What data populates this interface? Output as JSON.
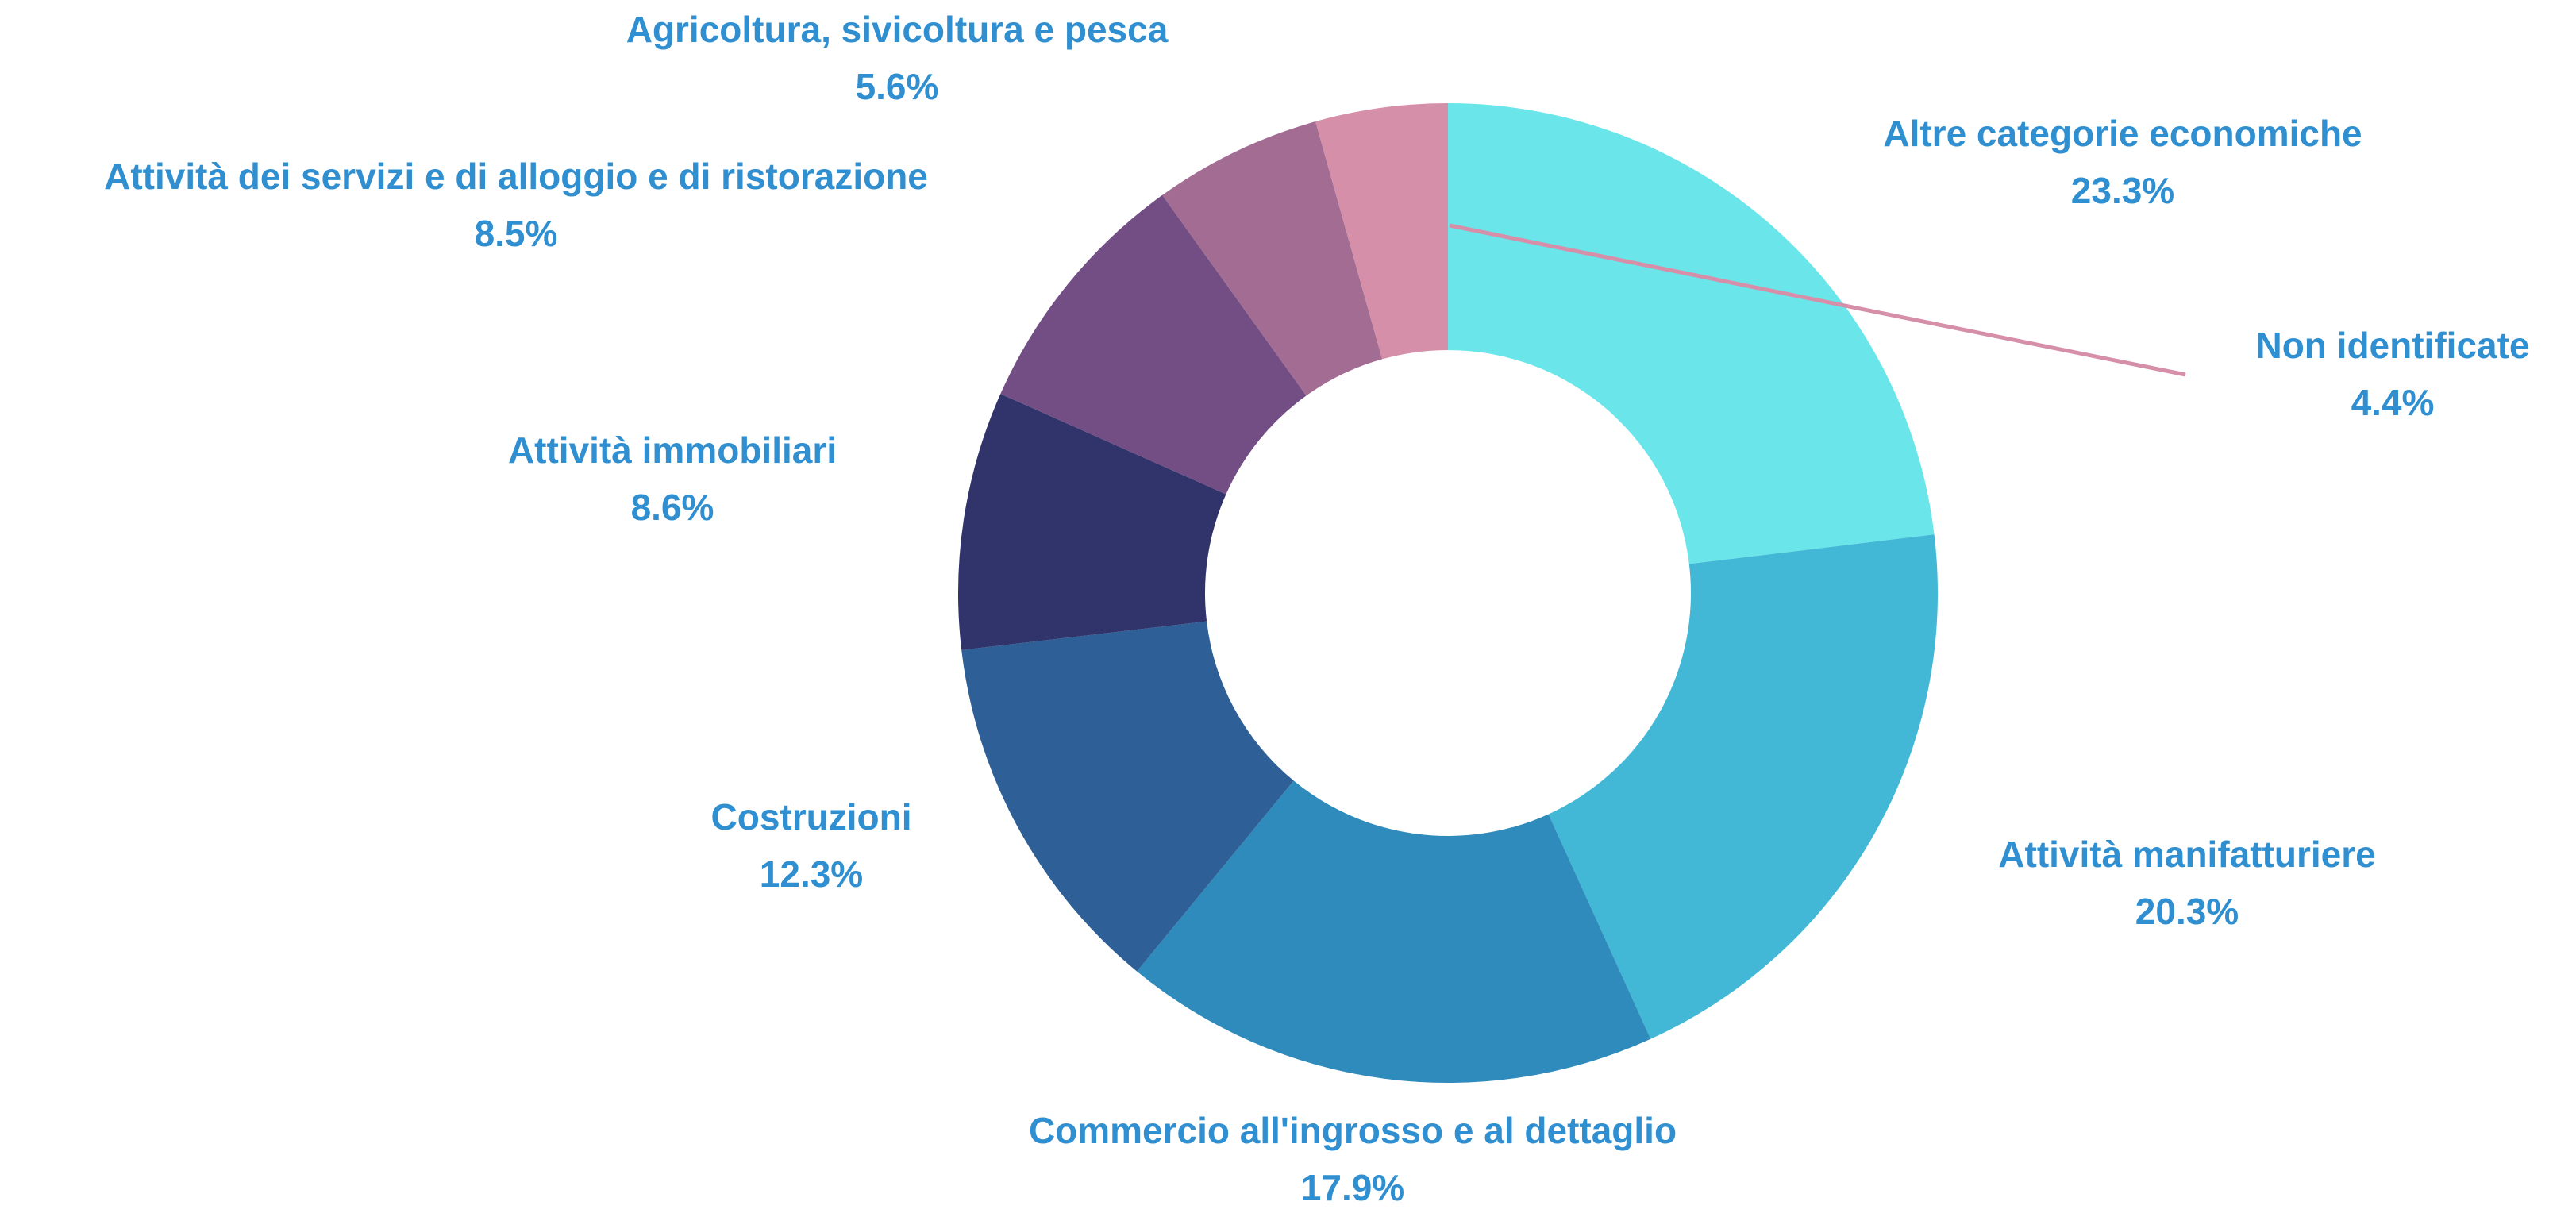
{
  "chart_data": {
    "type": "donut",
    "categories": [
      "Altre categorie economiche",
      "Attività manifatturiere",
      "Commercio all'ingrosso e al dettaglio",
      "Costruzioni",
      "Attività immobiliari",
      "Attività dei servizi e di alloggio e di ristorazione",
      "Agricoltura, sivicoltura e pesca",
      "Non identificate"
    ],
    "values": [
      23.3,
      20.3,
      17.9,
      12.3,
      8.6,
      8.5,
      5.6,
      4.4
    ],
    "value_labels": [
      "23.3%",
      "20.3%",
      "17.9%",
      "12.3%",
      "8.6%",
      "8.5%",
      "5.6%",
      "4.4%"
    ],
    "colors": [
      "#6ae6ea",
      "#42b8d6",
      "#2e8bbb",
      "#2e5f96",
      "#31346b",
      "#724e84",
      "#a36c93",
      "#d58fa8"
    ]
  }
}
